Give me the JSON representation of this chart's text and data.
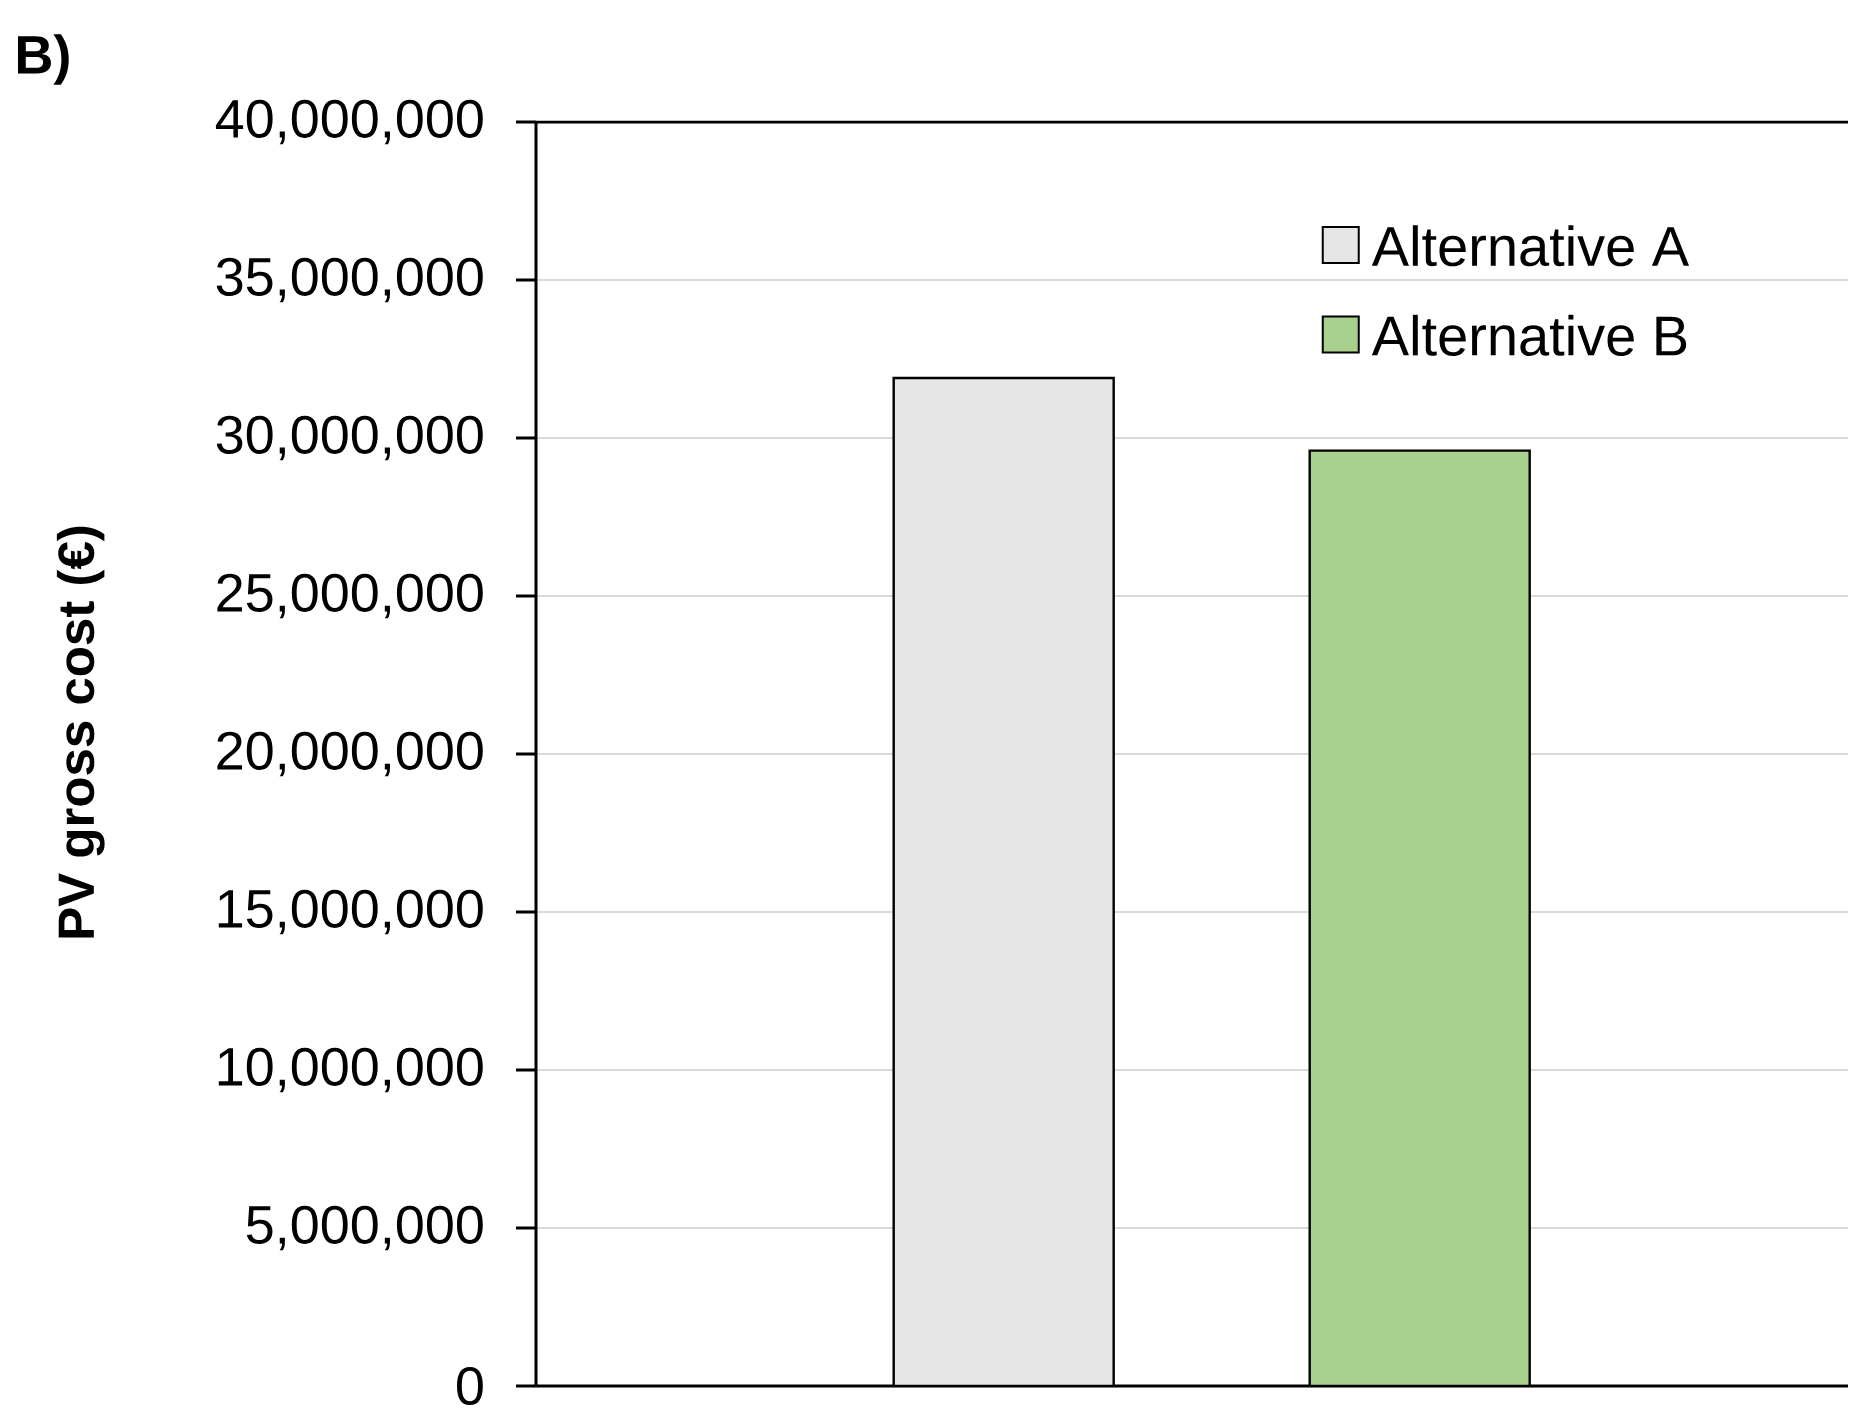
{
  "chart_data": {
    "type": "bar",
    "title": "B)",
    "ylabel": "PV gross cost (€)",
    "categories": [
      null
    ],
    "series": [
      {
        "name": "Alternative A",
        "color": "#e6e6e6",
        "values": [
          31900000
        ]
      },
      {
        "name": "Alternative B",
        "color": "#a9d18e",
        "values": [
          29600000
        ]
      }
    ],
    "ylim": [
      0,
      40000000
    ],
    "yticks": [
      0,
      {
        "value": 5000000,
        "label": "5,000,000"
      },
      {
        "value": 10000000,
        "label": "10,000,000"
      },
      {
        "value": 15000000,
        "label": "15,000,000"
      },
      {
        "value": 20000000,
        "label": "20,000,000"
      },
      {
        "value": 25000000,
        "label": "25,000,000"
      },
      {
        "value": 30000000,
        "label": "30,000,000"
      },
      {
        "value": 35000000,
        "label": "35,000,000"
      },
      {
        "value": 40000000,
        "label": "40,000,000"
      }
    ],
    "grid": "y",
    "legend": "top right"
  }
}
